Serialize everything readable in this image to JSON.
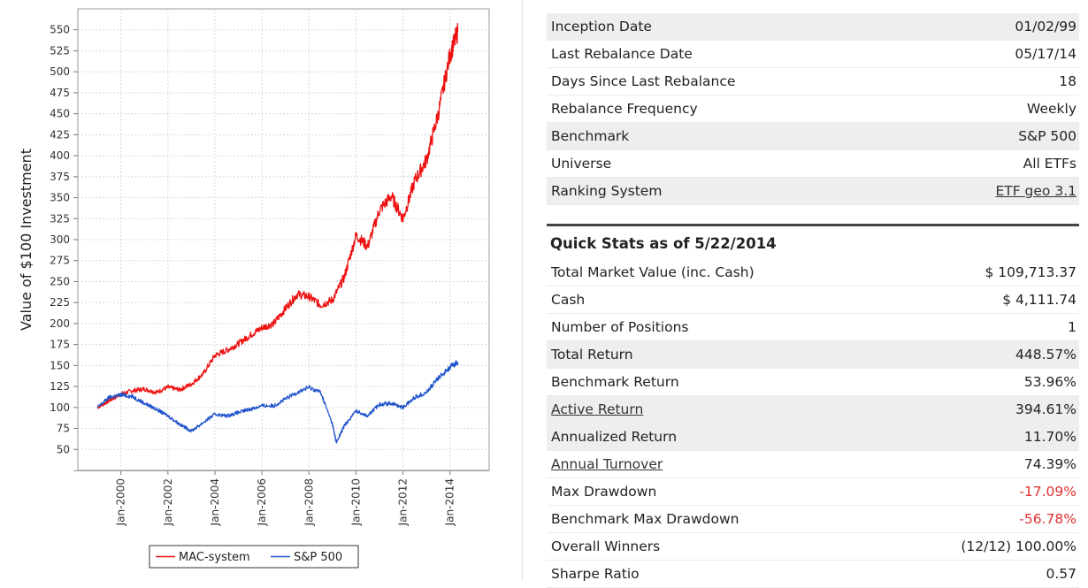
{
  "chart_data": {
    "type": "line",
    "ylabel": "Value of $100 Investment",
    "xlabel": "",
    "ylim": [
      25,
      575
    ],
    "y_ticks": [
      50,
      75,
      100,
      125,
      150,
      175,
      200,
      225,
      250,
      275,
      300,
      325,
      350,
      375,
      400,
      425,
      450,
      475,
      500,
      525,
      550
    ],
    "x_ticks": [
      "Jan-2000",
      "Jan-2002",
      "Jan-2004",
      "Jan-2006",
      "Jan-2008",
      "Jan-2010",
      "Jan-2012",
      "Jan-2014"
    ],
    "x_range": [
      "1998-03",
      "2015-09"
    ],
    "grid": true,
    "legend_position": "bottom",
    "series": [
      {
        "name": "MAC-system",
        "color": "#ee1111",
        "x": [
          "1999-01",
          "1999-07",
          "2000-01",
          "2000-07",
          "2001-01",
          "2001-07",
          "2002-01",
          "2002-07",
          "2003-01",
          "2003-07",
          "2004-01",
          "2004-07",
          "2005-01",
          "2005-07",
          "2006-01",
          "2006-07",
          "2007-01",
          "2007-07",
          "2008-01",
          "2008-07",
          "2009-01",
          "2009-07",
          "2010-01",
          "2010-07",
          "2011-01",
          "2011-07",
          "2012-01",
          "2012-07",
          "2013-01",
          "2013-07",
          "2014-01",
          "2014-05"
        ],
        "values": [
          100,
          108,
          116,
          120,
          122,
          118,
          124,
          121,
          128,
          140,
          162,
          168,
          176,
          186,
          195,
          200,
          218,
          235,
          232,
          222,
          228,
          255,
          305,
          292,
          335,
          352,
          325,
          370,
          395,
          450,
          520,
          548
        ]
      },
      {
        "name": "S&P 500",
        "color": "#2255cc",
        "x": [
          "1999-01",
          "1999-07",
          "2000-01",
          "2000-07",
          "2001-01",
          "2001-07",
          "2002-01",
          "2002-07",
          "2003-01",
          "2003-07",
          "2004-01",
          "2004-07",
          "2005-01",
          "2005-07",
          "2006-01",
          "2006-07",
          "2007-01",
          "2007-07",
          "2008-01",
          "2008-07",
          "2009-01",
          "2009-03",
          "2009-07",
          "2010-01",
          "2010-07",
          "2011-01",
          "2011-07",
          "2012-01",
          "2012-07",
          "2013-01",
          "2013-07",
          "2014-01",
          "2014-05"
        ],
        "values": [
          100,
          112,
          115,
          113,
          105,
          98,
          90,
          80,
          72,
          82,
          92,
          90,
          94,
          98,
          102,
          102,
          110,
          118,
          124,
          118,
          80,
          58,
          78,
          96,
          90,
          104,
          105,
          100,
          112,
          118,
          135,
          148,
          154
        ]
      }
    ]
  },
  "info": [
    {
      "label": "Inception Date",
      "value": "01/02/99"
    },
    {
      "label": "Last Rebalance Date",
      "value": "05/17/14"
    },
    {
      "label": "Days Since Last Rebalance",
      "value": "18"
    },
    {
      "label": "Rebalance Frequency",
      "value": "Weekly"
    },
    {
      "label": "Benchmark",
      "value": "S&P 500"
    },
    {
      "label": "Universe",
      "value": "All ETFs"
    },
    {
      "label": "Ranking System",
      "value": "ETF geo 3.1"
    }
  ],
  "quick_stats": {
    "title": "Quick Stats as of 5/22/2014",
    "rows": [
      {
        "label": "Total Market Value (inc. Cash)",
        "value": "$ 109,713.37"
      },
      {
        "label": "Cash",
        "value": "$ 4,111.74"
      },
      {
        "label": "Number of Positions",
        "value": "1"
      },
      {
        "label": "Total Return",
        "value": "448.57%"
      },
      {
        "label": "Benchmark Return",
        "value": "53.96%"
      },
      {
        "label": "Active Return",
        "value": "394.61%"
      },
      {
        "label": "Annualized Return",
        "value": "11.70%"
      },
      {
        "label": "Annual Turnover",
        "value": "74.39%"
      },
      {
        "label": "Max Drawdown",
        "value": "-17.09%"
      },
      {
        "label": "Benchmark Max Drawdown",
        "value": "-56.78%"
      },
      {
        "label": "Overall Winners",
        "value": "(12/12) 100.00%"
      },
      {
        "label": "Sharpe Ratio",
        "value": "0.57"
      }
    ]
  },
  "colors": {
    "negative": "#e03030",
    "row_shade": "#eeeeee"
  }
}
